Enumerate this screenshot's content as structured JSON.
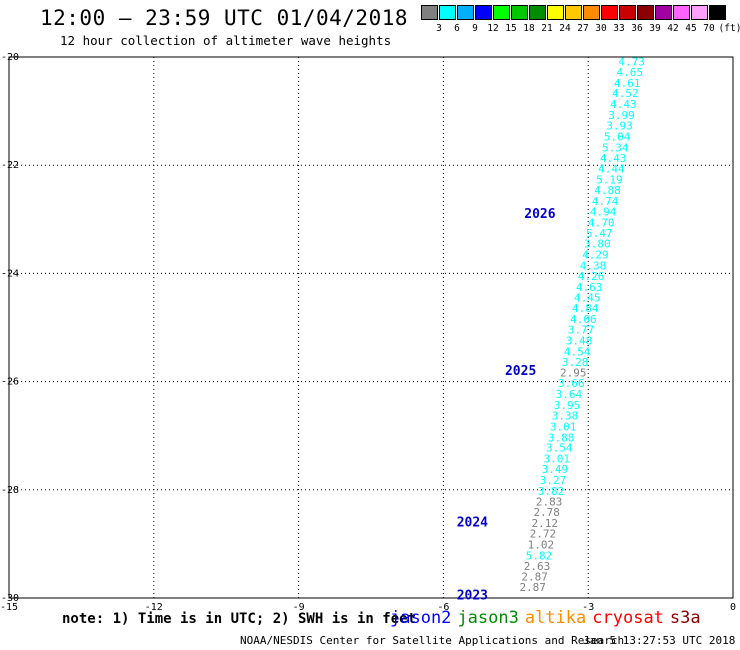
{
  "header": {
    "title": "12:00 – 23:59 UTC 01/04/2018",
    "subtitle": "12 hour collection of altimeter wave heights"
  },
  "color_scale": {
    "unit": "(ft)",
    "swatches": [
      {
        "color": "#808080",
        "label": "3"
      },
      {
        "color": "#00ffff",
        "label": "6"
      },
      {
        "color": "#00b0ff",
        "label": "9"
      },
      {
        "color": "#0000ff",
        "label": "12"
      },
      {
        "color": "#00ff00",
        "label": "15"
      },
      {
        "color": "#00c800",
        "label": "18"
      },
      {
        "color": "#008c00",
        "label": "21"
      },
      {
        "color": "#ffff00",
        "label": "24"
      },
      {
        "color": "#ffc800",
        "label": "27"
      },
      {
        "color": "#ff8c00",
        "label": "30"
      },
      {
        "color": "#ff0000",
        "label": "33"
      },
      {
        "color": "#c80000",
        "label": "36"
      },
      {
        "color": "#8b0000",
        "label": "39"
      },
      {
        "color": "#a000a0",
        "label": "42"
      },
      {
        "color": "#ff64ff",
        "label": "45"
      },
      {
        "color": "#ffa0ff",
        "label": "70"
      },
      {
        "color": "#000000",
        "label": ""
      }
    ]
  },
  "chart_data": {
    "type": "scatter",
    "xlim": [
      -15,
      0
    ],
    "ylim": [
      -30,
      -20
    ],
    "xticks": [
      -15,
      -12,
      -9,
      -6,
      -3,
      0
    ],
    "yticks": [
      -20,
      -22,
      -24,
      -26,
      -28,
      -30
    ],
    "grid": true,
    "points": [
      {
        "x": -2.1,
        "y": -20.08,
        "v": "4.73",
        "c": "#00ffff"
      },
      {
        "x": -2.14,
        "y": -20.28,
        "v": "4.65",
        "c": "#00ffff"
      },
      {
        "x": -2.19,
        "y": -20.48,
        "v": "4.61",
        "c": "#00ffff"
      },
      {
        "x": -2.23,
        "y": -20.67,
        "v": "4.52",
        "c": "#00ffff"
      },
      {
        "x": -2.27,
        "y": -20.87,
        "v": "4.43",
        "c": "#00ffff"
      },
      {
        "x": -2.31,
        "y": -21.07,
        "v": "3.99",
        "c": "#00ffff"
      },
      {
        "x": -2.35,
        "y": -21.27,
        "v": "3.93",
        "c": "#00ffff"
      },
      {
        "x": -2.4,
        "y": -21.47,
        "v": "5.04",
        "c": "#00ffff"
      },
      {
        "x": -2.44,
        "y": -21.67,
        "v": "5.34",
        "c": "#00ffff"
      },
      {
        "x": -2.48,
        "y": -21.87,
        "v": "4.43",
        "c": "#00ffff"
      },
      {
        "x": -2.52,
        "y": -22.06,
        "v": "4.44",
        "c": "#00ffff"
      },
      {
        "x": -2.56,
        "y": -22.26,
        "v": "5.19",
        "c": "#00ffff"
      },
      {
        "x": -2.6,
        "y": -22.46,
        "v": "4.88",
        "c": "#00ffff"
      },
      {
        "x": -2.65,
        "y": -22.66,
        "v": "4.74",
        "c": "#00ffff"
      },
      {
        "x": -2.69,
        "y": -22.86,
        "v": "4.94",
        "c": "#00ffff"
      },
      {
        "x": -2.73,
        "y": -23.06,
        "v": "4.70",
        "c": "#00ffff"
      },
      {
        "x": -2.77,
        "y": -23.25,
        "v": "5.47",
        "c": "#00ffff"
      },
      {
        "x": -2.81,
        "y": -23.45,
        "v": "3.80",
        "c": "#00ffff"
      },
      {
        "x": -2.85,
        "y": -23.65,
        "v": "4.29",
        "c": "#00ffff"
      },
      {
        "x": -2.9,
        "y": -23.85,
        "v": "4.38",
        "c": "#00ffff"
      },
      {
        "x": -2.94,
        "y": -24.05,
        "v": "4.26",
        "c": "#00ffff"
      },
      {
        "x": -2.98,
        "y": -24.25,
        "v": "4.63",
        "c": "#00ffff"
      },
      {
        "x": -3.02,
        "y": -24.45,
        "v": "4.45",
        "c": "#00ffff"
      },
      {
        "x": -3.06,
        "y": -24.64,
        "v": "4.84",
        "c": "#00ffff"
      },
      {
        "x": -3.1,
        "y": -24.84,
        "v": "4.06",
        "c": "#00ffff"
      },
      {
        "x": -3.15,
        "y": -25.04,
        "v": "3.77",
        "c": "#00ffff"
      },
      {
        "x": -3.19,
        "y": -25.24,
        "v": "3.48",
        "c": "#00ffff"
      },
      {
        "x": -3.23,
        "y": -25.44,
        "v": "4.54",
        "c": "#00ffff"
      },
      {
        "x": -3.27,
        "y": -25.64,
        "v": "3.28",
        "c": "#00ffff"
      },
      {
        "x": -3.31,
        "y": -25.83,
        "v": "2.95",
        "c": "#808080"
      },
      {
        "x": -3.35,
        "y": -26.03,
        "v": "3.66",
        "c": "#00ffff"
      },
      {
        "x": -3.4,
        "y": -26.23,
        "v": "3.64",
        "c": "#00ffff"
      },
      {
        "x": -3.44,
        "y": -26.43,
        "v": "3.95",
        "c": "#00ffff"
      },
      {
        "x": -3.48,
        "y": -26.63,
        "v": "3.38",
        "c": "#00ffff"
      },
      {
        "x": -3.52,
        "y": -26.83,
        "v": "3.01",
        "c": "#00ffff"
      },
      {
        "x": -3.56,
        "y": -27.03,
        "v": "3.88",
        "c": "#00ffff"
      },
      {
        "x": -3.6,
        "y": -27.22,
        "v": "3.54",
        "c": "#00ffff"
      },
      {
        "x": -3.65,
        "y": -27.42,
        "v": "3.01",
        "c": "#00ffff"
      },
      {
        "x": -3.69,
        "y": -27.62,
        "v": "3.49",
        "c": "#00ffff"
      },
      {
        "x": -3.73,
        "y": -27.82,
        "v": "3.27",
        "c": "#00ffff"
      },
      {
        "x": -3.77,
        "y": -28.02,
        "v": "3.82",
        "c": "#00ffff"
      },
      {
        "x": -3.81,
        "y": -28.22,
        "v": "2.83",
        "c": "#808080"
      },
      {
        "x": -3.86,
        "y": -28.41,
        "v": "2.78",
        "c": "#808080"
      },
      {
        "x": -3.9,
        "y": -28.61,
        "v": "2.12",
        "c": "#808080"
      },
      {
        "x": -3.94,
        "y": -28.81,
        "v": "2.72",
        "c": "#808080"
      },
      {
        "x": -3.98,
        "y": -29.01,
        "v": "1.02",
        "c": "#808080"
      },
      {
        "x": -4.02,
        "y": -29.21,
        "v": "5.82",
        "c": "#00ffff"
      },
      {
        "x": -4.06,
        "y": -29.41,
        "v": "2.63",
        "c": "#808080"
      },
      {
        "x": -4.11,
        "y": -29.6,
        "v": "2.87",
        "c": "#808080"
      },
      {
        "x": -4.15,
        "y": -29.8,
        "v": "2.87",
        "c": "#808080"
      }
    ],
    "pass_labels": [
      {
        "x": -4.0,
        "y": -22.9,
        "text": "2026"
      },
      {
        "x": -4.4,
        "y": -25.8,
        "text": "2025"
      },
      {
        "x": -5.4,
        "y": -28.6,
        "text": "2024"
      },
      {
        "x": -5.4,
        "y": -29.95,
        "text": "2023"
      }
    ]
  },
  "footer": {
    "note": "note: 1) Time is in UTC; 2) SWH is in feet",
    "satellites": [
      {
        "name": "jason2",
        "color": "#0000ff"
      },
      {
        "name": "jason3",
        "color": "#008c00"
      },
      {
        "name": "altika",
        "color": "#ff8c00"
      },
      {
        "name": "cryosat",
        "color": "#ff0000"
      },
      {
        "name": "s3a",
        "color": "#8b0000"
      }
    ],
    "credit": "NOAA/NESDIS Center for Satellite Applications and Research",
    "timestamp": "Jan  5 13:27:53 UTC 2018"
  }
}
